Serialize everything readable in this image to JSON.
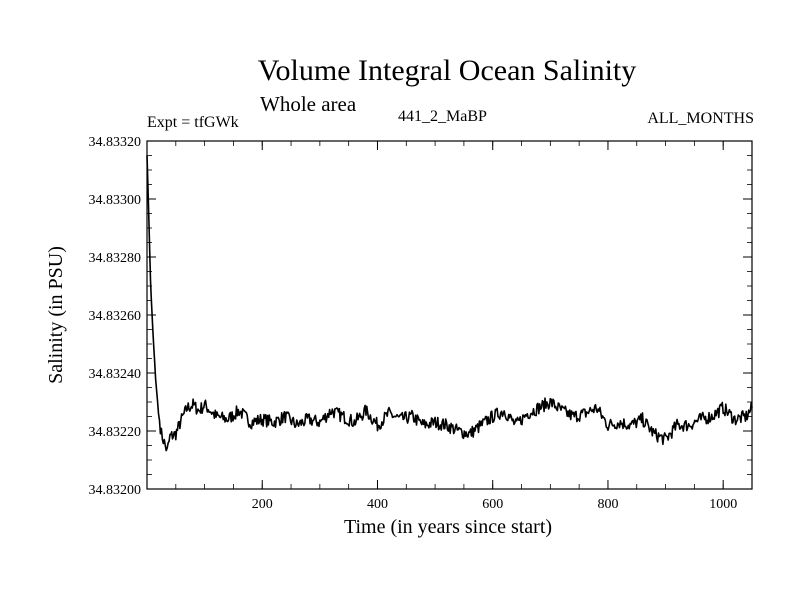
{
  "title": "Volume Integral Ocean Salinity",
  "subtitle": "Whole area",
  "experiment_label": "Expt = tfGWk",
  "run_label": "441_2_MaBP",
  "period_label": "ALL_MONTHS",
  "chart_data": {
    "type": "line",
    "title": "Volume Integral Ocean Salinity",
    "xlabel": "Time (in years since start)",
    "ylabel": "Salinity (in PSU)",
    "xlim": [
      0,
      1050
    ],
    "ylim": [
      34.832,
      34.8332
    ],
    "x_ticks": [
      200,
      400,
      600,
      800,
      1000
    ],
    "x_tick_labels": [
      "200",
      "400",
      "600",
      "800",
      "1000"
    ],
    "y_ticks": [
      34.832,
      34.8322,
      34.8324,
      34.8326,
      34.8328,
      34.833,
      34.8332
    ],
    "y_tick_labels": [
      "34.83200",
      "34.83220",
      "34.83240",
      "34.83260",
      "34.83280",
      "34.83300",
      "34.83320"
    ],
    "grid": false,
    "series": [
      {
        "name": "Salinity",
        "color": "#000000",
        "x": [
          0,
          3,
          6,
          10,
          15,
          20,
          25,
          30,
          35,
          40,
          50,
          60,
          70,
          80,
          90,
          100,
          120,
          140,
          160,
          180,
          200,
          220,
          240,
          260,
          280,
          300,
          320,
          340,
          360,
          380,
          400,
          420,
          440,
          460,
          480,
          500,
          520,
          540,
          560,
          580,
          600,
          620,
          640,
          660,
          680,
          700,
          720,
          740,
          760,
          780,
          800,
          820,
          840,
          860,
          880,
          900,
          920,
          940,
          960,
          980,
          1000,
          1020,
          1040,
          1050
        ],
        "y": [
          34.83315,
          34.83295,
          34.83272,
          34.83255,
          34.83238,
          34.83226,
          34.83219,
          34.83216,
          34.83213,
          34.83218,
          34.83219,
          34.83224,
          34.83228,
          34.83229,
          34.83227,
          34.83229,
          34.83225,
          34.83224,
          34.83227,
          34.83223,
          34.83224,
          34.83223,
          34.83225,
          34.83222,
          34.83224,
          34.83223,
          34.83227,
          34.83225,
          34.83223,
          34.83227,
          34.83222,
          34.83226,
          34.83224,
          34.83225,
          34.83222,
          34.83223,
          34.83222,
          34.8322,
          34.83219,
          34.83222,
          34.83225,
          34.83227,
          34.83222,
          34.83226,
          34.83228,
          34.8323,
          34.83227,
          34.83225,
          34.83226,
          34.83228,
          34.83222,
          34.83223,
          34.83222,
          34.83224,
          34.83219,
          34.83217,
          34.83222,
          34.83222,
          34.83224,
          34.83225,
          34.83228,
          34.83224,
          34.83225,
          34.83228
        ]
      }
    ]
  }
}
